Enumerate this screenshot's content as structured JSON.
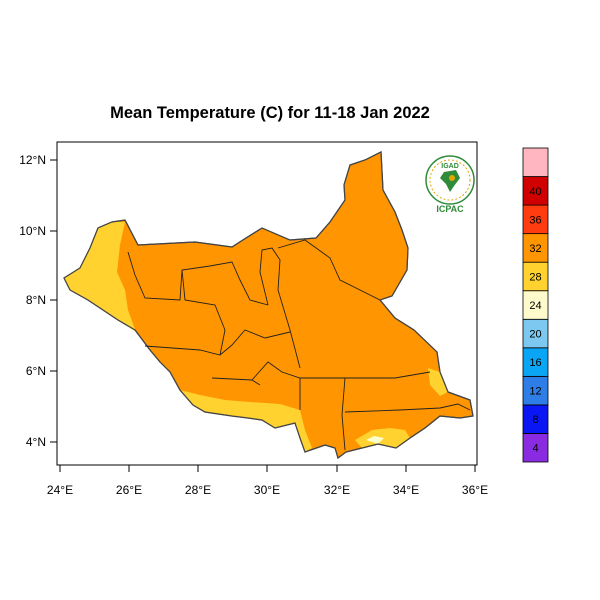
{
  "title": "Mean Temperature (C) for 11-18 Jan 2022",
  "map": {
    "region": "South Sudan",
    "variable": "Mean Temperature",
    "units": "C",
    "period": "11-18 Jan 2022",
    "lon_range": [
      24,
      36
    ],
    "lat_range": [
      3.4,
      12.4
    ],
    "x_ticks": [
      "24°E",
      "26°E",
      "28°E",
      "30°E",
      "32°E",
      "34°E",
      "36°E"
    ],
    "y_ticks": [
      "4°N",
      "6°N",
      "8°N",
      "10°N",
      "12°N"
    ],
    "dominant_class": "28-32",
    "colors": {
      "class_24_28": "#ffd230",
      "class_28_32": "#ff9500",
      "class_20_24": "#ffffcc",
      "border": "#000000"
    }
  },
  "colorbar": {
    "labels": [
      "4",
      "8",
      "12",
      "16",
      "20",
      "24",
      "28",
      "32",
      "36",
      "40"
    ],
    "colors": [
      "#8a2be2",
      "#0b16f5",
      "#2f7de6",
      "#0aa6f5",
      "#7cc8f0",
      "#fffacc",
      "#ffd230",
      "#ff9500",
      "#ff3c10",
      "#d10000",
      "#ffb6c1"
    ]
  },
  "logo": {
    "top_text": "IGAD",
    "bottom_text": "ICPAC",
    "colors": {
      "green": "#2e8b3a",
      "gold": "#e0a800"
    }
  }
}
